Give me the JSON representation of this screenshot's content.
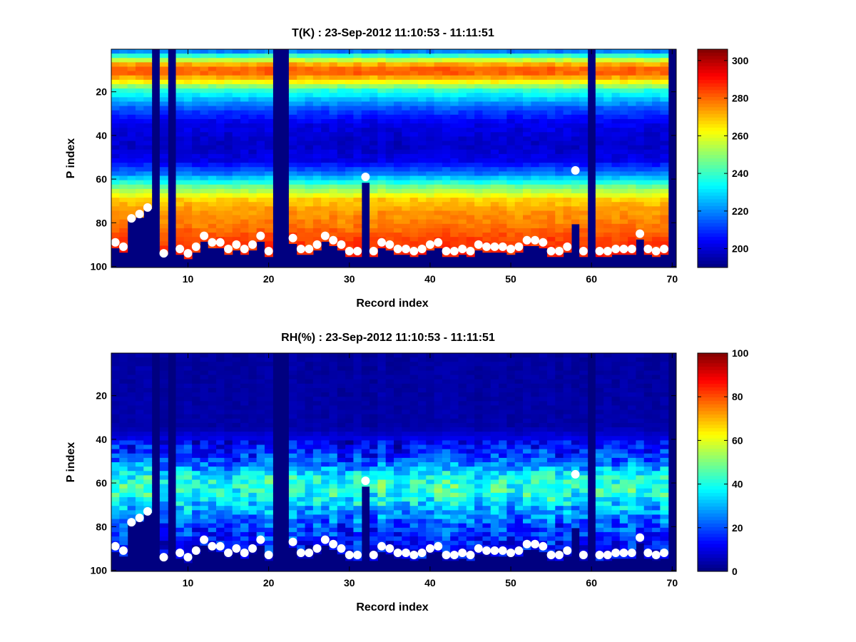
{
  "chart_data": [
    {
      "type": "heatmap",
      "title": "T(K) : 23-Sep-2012 11:10:53 - 11:11:51",
      "xlabel": "Record index",
      "ylabel": "P index",
      "xlim": [
        0.5,
        70.5
      ],
      "ylim": [
        100,
        1
      ],
      "y_reversed": true,
      "xticks": [
        10,
        20,
        30,
        40,
        50,
        60,
        70
      ],
      "yticks": [
        20,
        40,
        60,
        80,
        100
      ],
      "colormap": "jet",
      "clim": [
        190,
        306
      ],
      "colorbar_ticks": [
        200,
        220,
        240,
        260,
        280,
        300
      ],
      "n_records": 70,
      "n_levels": 100,
      "profile": {
        "levels": [
          1,
          5,
          8,
          11,
          15,
          20,
          28,
          35,
          45,
          52,
          58,
          64,
          70,
          75,
          82,
          88,
          92,
          95
        ],
        "values": [
          210,
          248,
          272,
          284,
          268,
          238,
          214,
          202,
          198,
          202,
          218,
          246,
          268,
          274,
          278,
          284,
          286,
          288
        ]
      },
      "missing_records": [
        6,
        8,
        21,
        22,
        60,
        70
      ],
      "masked_below": [
        {
          "record": 3,
          "level": 78
        },
        {
          "record": 4,
          "level": 77
        },
        {
          "record": 5,
          "level": 73
        },
        {
          "record": 7,
          "level": 94
        },
        {
          "record": 58,
          "level": 80
        }
      ],
      "markers": {
        "x": [
          1,
          2,
          3,
          4,
          5,
          7,
          9,
          10,
          11,
          12,
          13,
          14,
          15,
          16,
          17,
          18,
          19,
          20,
          23,
          24,
          25,
          26,
          27,
          28,
          29,
          30,
          31,
          32,
          33,
          34,
          35,
          36,
          37,
          38,
          39,
          40,
          41,
          42,
          43,
          44,
          45,
          46,
          47,
          48,
          49,
          50,
          51,
          52,
          53,
          54,
          55,
          56,
          57,
          58,
          59,
          61,
          62,
          63,
          64,
          65,
          66,
          67,
          68,
          69
        ],
        "y": [
          89,
          91,
          78,
          76,
          73,
          94,
          92,
          94,
          91,
          86,
          89,
          89,
          92,
          90,
          92,
          90,
          86,
          93,
          87,
          92,
          92,
          90,
          86,
          88,
          90,
          93,
          93,
          59,
          93,
          89,
          90,
          92,
          92,
          93,
          92,
          90,
          89,
          93,
          93,
          92,
          93,
          90,
          91,
          91,
          91,
          92,
          91,
          88,
          88,
          89,
          93,
          93,
          91,
          56,
          93,
          93,
          93,
          92,
          92,
          92,
          85,
          92,
          93,
          92
        ]
      }
    },
    {
      "type": "heatmap",
      "title": "RH(%) : 23-Sep-2012 11:10:53 - 11:11:51",
      "xlabel": "Record index",
      "ylabel": "P index",
      "xlim": [
        0.5,
        70.5
      ],
      "ylim": [
        100,
        1
      ],
      "y_reversed": true,
      "xticks": [
        10,
        20,
        30,
        40,
        50,
        60,
        70
      ],
      "yticks": [
        20,
        40,
        60,
        80,
        100
      ],
      "colormap": "jet",
      "clim": [
        0,
        100
      ],
      "colorbar_ticks": [
        0,
        20,
        40,
        60,
        80,
        100
      ],
      "n_records": 70,
      "n_levels": 100,
      "profile": {
        "levels": [
          1,
          35,
          42,
          50,
          55,
          58,
          62,
          66,
          70,
          75,
          80,
          88,
          92,
          95
        ],
        "values": [
          3,
          4,
          12,
          20,
          32,
          38,
          42,
          40,
          34,
          26,
          20,
          14,
          12,
          10
        ]
      },
      "missing_records": [
        6,
        8,
        21,
        22,
        60,
        70
      ],
      "masked_below": [
        {
          "record": 3,
          "level": 78
        },
        {
          "record": 4,
          "level": 77
        },
        {
          "record": 5,
          "level": 73
        },
        {
          "record": 7,
          "level": 94
        },
        {
          "record": 58,
          "level": 80
        }
      ],
      "markers": {
        "x": [
          1,
          2,
          3,
          4,
          5,
          7,
          9,
          10,
          11,
          12,
          13,
          14,
          15,
          16,
          17,
          18,
          19,
          20,
          23,
          24,
          25,
          26,
          27,
          28,
          29,
          30,
          31,
          32,
          33,
          34,
          35,
          36,
          37,
          38,
          39,
          40,
          41,
          42,
          43,
          44,
          45,
          46,
          47,
          48,
          49,
          50,
          51,
          52,
          53,
          54,
          55,
          56,
          57,
          58,
          59,
          61,
          62,
          63,
          64,
          65,
          66,
          67,
          68,
          69
        ],
        "y": [
          89,
          91,
          78,
          76,
          73,
          94,
          92,
          94,
          91,
          86,
          89,
          89,
          92,
          90,
          92,
          90,
          86,
          93,
          87,
          92,
          92,
          90,
          86,
          88,
          90,
          93,
          93,
          59,
          93,
          89,
          90,
          92,
          92,
          93,
          92,
          90,
          89,
          93,
          93,
          92,
          93,
          90,
          91,
          91,
          91,
          92,
          91,
          88,
          88,
          89,
          93,
          93,
          91,
          56,
          93,
          93,
          93,
          92,
          92,
          92,
          85,
          92,
          93,
          92
        ]
      }
    }
  ]
}
